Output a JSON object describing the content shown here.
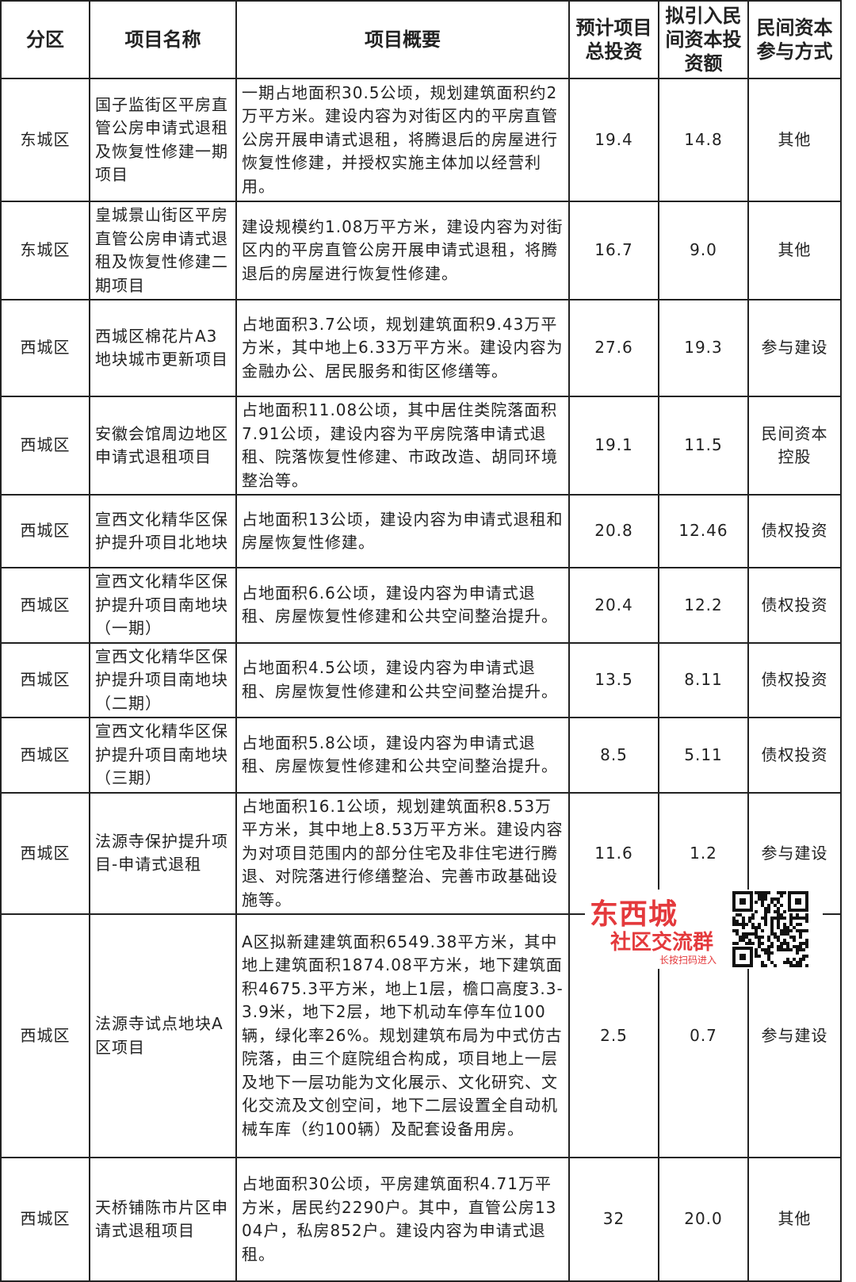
{
  "table": {
    "header": [
      "分区",
      "项目名称",
      "项目概要",
      "预计项目总投资",
      "拟引入民间资本投资额",
      "民间资本参与方式"
    ],
    "rows": [
      [
        "东城区",
        "国子监街区平房直管公房申请式退租及恢复性修建一期项目",
        "一期占地面积30.5公顷，规划建筑面积约2万平方米。建设内容为对街区内的平房直管公房开展申请式退租，将腾退后的房屋进行恢复性修建，并授权实施主体加以经营利用。",
        "19.4",
        "14.8",
        "其他"
      ],
      [
        "东城区",
        "皇城景山街区平房直管公房申请式退租及恢复性修建二期项目",
        "建设规模约1.08万平方米，建设内容为对街区内的平房直管公房开展申请式退租，将腾退后的房屋进行恢复性修建。",
        "16.7",
        "9.0",
        "其他"
      ],
      [
        "西城区",
        "西城区棉花片A3地块城市更新项目",
        "占地面积3.7公顷，规划建筑面积9.43万平方米，其中地上6.33万平方米。建设内容为金融办公、居民服务和街区修缮等。",
        "27.6",
        "19.3",
        "参与建设"
      ],
      [
        "西城区",
        "安徽会馆周边地区申请式退租项目",
        "占地面积11.08公顷，其中居住类院落面积7.91公顷，建设内容为平房院落申请式退租、院落恢复性修建、市政改造、胡同环境整治等。",
        "19.1",
        "11.5",
        "民间资本控股"
      ],
      [
        "西城区",
        "宣西文化精华区保护提升项目北地块",
        "占地面积13公顷，建设内容为申请式退租和房屋恢复性修建。",
        "20.8",
        "12.46",
        "债权投资"
      ],
      [
        "西城区",
        "宣西文化精华区保护提升项目南地块（一期）",
        "占地面积6.6公顷，建设内容为申请式退租、房屋恢复性修建和公共空间整治提升。",
        "20.4",
        "12.2",
        "债权投资"
      ],
      [
        "西城区",
        "宣西文化精华区保护提升项目南地块（二期）",
        "占地面积4.5公顷，建设内容为申请式退租、房屋恢复性修建和公共空间整治提升。",
        "13.5",
        "8.11",
        "债权投资"
      ],
      [
        "西城区",
        "宣西文化精华区保护提升项目南地块（三期）",
        "占地面积5.8公顷，建设内容为申请式退租、房屋恢复性修建和公共空间整治提升。",
        "8.5",
        "5.11",
        "债权投资"
      ],
      [
        "西城区",
        "法源寺保护提升项目-申请式退租",
        "占地面积16.1公顷，规划建筑面积8.53万平方米，其中地上8.53万平方米。建设内容为对项目范围内的部分住宅及非住宅进行腾退、对院落进行修缮整治、完善市政基础设施等。",
        "11.6",
        "1.2",
        "参与建设"
      ],
      [
        "西城区",
        "法源寺试点地块A区项目",
        "A区拟新建建筑面积6549.38平方米，其中地上建筑面积1874.08平方米，地下建筑面积4675.3平方米，地上1层，檐口高度3.3-3.9米，地下2层，地下机动车停车位100辆，绿化率26%。规划建筑布局为中式仿古院落，由三个庭院组合构成，项目地上一层及地下一层功能为文化展示、文化研究、文化交流及文创空间，地下二层设置全自动机械车库（约100辆）及配套设备用房。",
        "2.5",
        "0.7",
        "参与建设"
      ],
      [
        "西城区",
        "天桥铺陈市片区申请式退租项目",
        "占地面积30公顷，平房建筑面积4.71万平方米，居民约2290户。其中，直管公房1304户，私房852户。建设内容为申请式退租。",
        "32",
        "20.0",
        "其他"
      ]
    ]
  },
  "watermark": {
    "title": "东西城",
    "subtitle": "社区交流群",
    "hint": "长按扫码进入"
  }
}
